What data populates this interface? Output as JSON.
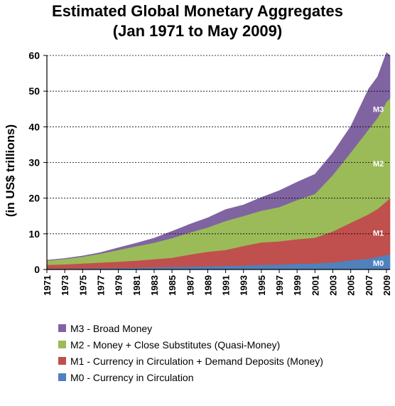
{
  "chart_data": {
    "type": "area",
    "stacked": true,
    "title": "Estimated Global Monetary Aggregates",
    "subtitle": "(Jan 1971 to May 2009)",
    "ylabel": "(in US$ trillions)",
    "ylim": [
      0,
      60
    ],
    "yticks": [
      0,
      10,
      20,
      30,
      40,
      50,
      60
    ],
    "xlim": [
      1971,
      2009.4
    ],
    "xticks": [
      1971,
      1973,
      1975,
      1977,
      1979,
      1981,
      1983,
      1985,
      1987,
      1989,
      1991,
      1993,
      1995,
      1997,
      1999,
      2001,
      2003,
      2005,
      2007,
      2009
    ],
    "grid": "horizontal dashed",
    "legend_position": "bottom",
    "x": [
      1971,
      1973,
      1975,
      1977,
      1979,
      1981,
      1983,
      1985,
      1987,
      1989,
      1991,
      1993,
      1995,
      1997,
      1999,
      2001,
      2003,
      2005,
      2007,
      2008,
      2009,
      2009.4
    ],
    "series": [
      {
        "name": "M0 - Currency in Circulation",
        "label": "M0",
        "color": "#4f81bd",
        "values": [
          0.2,
          0.25,
          0.3,
          0.35,
          0.4,
          0.5,
          0.6,
          0.7,
          0.8,
          0.9,
          1.0,
          1.1,
          1.3,
          1.4,
          1.6,
          1.7,
          2.0,
          2.6,
          3.0,
          3.6,
          4.1,
          4.2
        ]
      },
      {
        "name": "M1 - Currency in Circulation + Demand Deposits (Money)",
        "label": "M1",
        "color": "#c0504d",
        "values": [
          1.1,
          1.2,
          1.4,
          1.6,
          1.8,
          2.0,
          2.3,
          2.6,
          3.4,
          4.1,
          4.5,
          5.5,
          6.3,
          6.5,
          6.9,
          7.2,
          8.7,
          10.5,
          12.5,
          13.4,
          15.0,
          15.8
        ]
      },
      {
        "name": "M2 - Money + Close Substitutes (Quasi-Money)",
        "label": "M2",
        "color": "#9bbb59",
        "values": [
          1.2,
          1.5,
          1.9,
          2.5,
          3.3,
          4.0,
          4.6,
          5.5,
          6.2,
          6.8,
          8.1,
          8.4,
          8.9,
          9.6,
          11.0,
          12.3,
          15.8,
          19.7,
          23.8,
          25.5,
          27.9,
          28.0
        ]
      },
      {
        "name": "M3 - Broad Money",
        "label": "M3",
        "color": "#8064a2",
        "values": [
          0.1,
          0.15,
          0.2,
          0.3,
          0.6,
          0.9,
          1.3,
          1.9,
          2.3,
          2.7,
          3.2,
          3.1,
          3.7,
          4.6,
          5.0,
          5.5,
          6.2,
          7.3,
          11.3,
          11.5,
          13.8,
          12.0
        ]
      }
    ]
  }
}
